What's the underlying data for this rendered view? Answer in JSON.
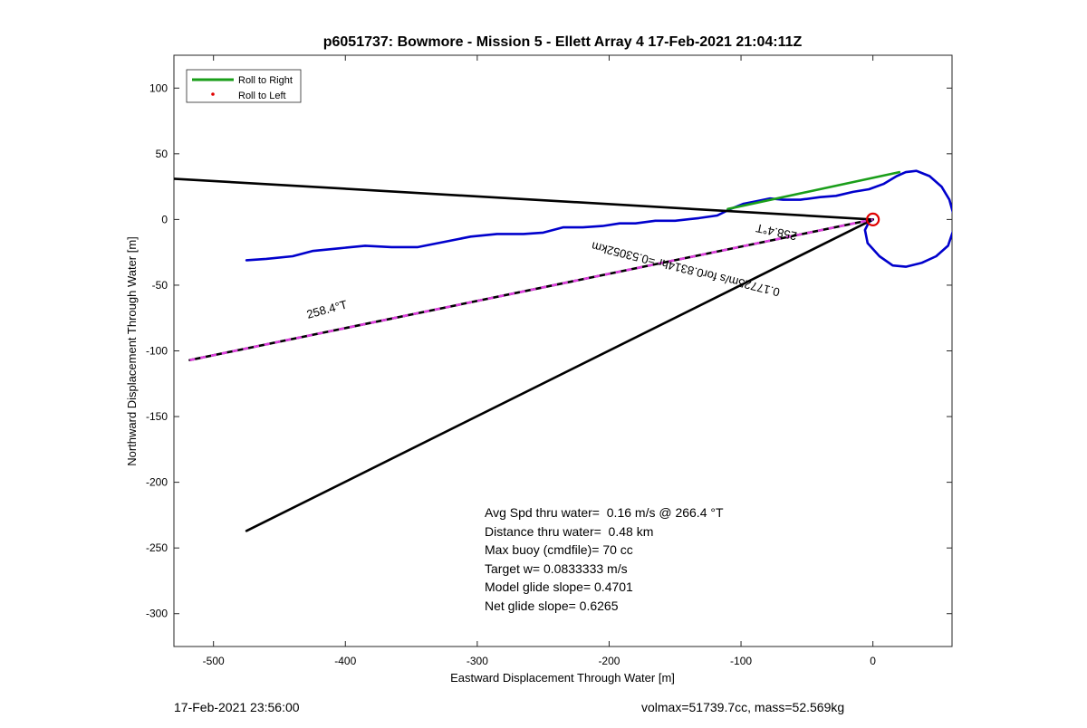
{
  "chart_data": {
    "type": "line",
    "title": "p6051737: Bowmore - Mission 5 - Ellett Array 4 17-Feb-2021 21:04:11Z",
    "xlabel": "Eastward Displacement Through Water [m]",
    "ylabel": "Northward Displacement Through Water [m]",
    "xlim": [
      -530,
      60
    ],
    "ylim": [
      -325,
      125
    ],
    "xticks": [
      -500,
      -400,
      -300,
      -200,
      -100,
      0
    ],
    "yticks": [
      100,
      50,
      0,
      -50,
      -100,
      -150,
      -200,
      -250,
      -300
    ],
    "grid": false,
    "legend": {
      "placement": "top-left",
      "entries": [
        {
          "label": "Roll to Right",
          "color": "#1a9e1a",
          "style": "line"
        },
        {
          "label": "Roll to Left",
          "color": "#e00000",
          "style": "dot"
        }
      ]
    },
    "series": [
      {
        "color": "#0000cc",
        "points": [
          [
            -475,
            -31
          ],
          [
            -460,
            -30
          ],
          [
            -440,
            -28
          ],
          [
            -425,
            -24
          ],
          [
            -405,
            -22
          ],
          [
            -385,
            -20
          ],
          [
            -365,
            -21
          ],
          [
            -345,
            -21
          ],
          [
            -325,
            -17
          ],
          [
            -305,
            -13
          ],
          [
            -285,
            -11
          ],
          [
            -265,
            -11
          ],
          [
            -250,
            -10
          ],
          [
            -235,
            -6
          ],
          [
            -220,
            -6
          ],
          [
            -205,
            -5
          ],
          [
            -192,
            -3
          ],
          [
            -180,
            -3
          ],
          [
            -165,
            -1
          ],
          [
            -150,
            -1
          ],
          [
            -132,
            1
          ],
          [
            -118,
            3
          ],
          [
            -108,
            8
          ],
          [
            -98,
            12
          ],
          [
            -88,
            14
          ],
          [
            -78,
            16
          ],
          [
            -68,
            15
          ],
          [
            -55,
            15
          ],
          [
            -40,
            17
          ],
          [
            -28,
            18
          ],
          [
            -15,
            21
          ],
          [
            -3,
            23
          ],
          [
            8,
            27
          ],
          [
            18,
            33
          ],
          [
            25,
            36
          ],
          [
            33,
            37
          ],
          [
            43,
            33
          ],
          [
            52,
            25
          ],
          [
            58,
            15
          ],
          [
            61,
            4
          ],
          [
            61,
            -8
          ],
          [
            57,
            -20
          ],
          [
            48,
            -28
          ],
          [
            37,
            -33
          ],
          [
            25,
            -36
          ],
          [
            15,
            -35
          ],
          [
            5,
            -28
          ],
          [
            -4,
            -18
          ],
          [
            -6,
            -8
          ],
          [
            -3,
            -2
          ],
          [
            0,
            0
          ]
        ]
      },
      {
        "color": "#1a9e1a",
        "points": [
          [
            -110,
            8
          ],
          [
            20,
            36
          ]
        ]
      },
      {
        "color": "#000000",
        "points": [
          [
            -530,
            31
          ],
          [
            0,
            0
          ]
        ]
      },
      {
        "color": "#000000",
        "points": [
          [
            -475,
            -237
          ],
          [
            0,
            0
          ]
        ]
      },
      {
        "color": "#000000",
        "dash_color": "#e040e0",
        "points": [
          [
            -518,
            -107
          ],
          [
            0,
            0
          ]
        ]
      }
    ],
    "markers": [
      {
        "type": "circle",
        "color": "#e00000",
        "x": 0,
        "y": 0
      }
    ],
    "annotations": {
      "heading_near": "258.4°T",
      "heading_far": "258.4°T",
      "speed": "0.17725m/s for0.8314hr =0.53052km",
      "stats": [
        "Avg Spd thru water=  0.16 m/s @ 266.4 °T",
        "Distance thru water=  0.48 km",
        "Max buoy (cmdfile)= 70 cc",
        "Target w= 0.0833333 m/s",
        "Model glide slope= 0.4701",
        "Net glide slope= 0.6265"
      ]
    }
  },
  "footer": {
    "timestamp": "17-Feb-2021 23:56:00",
    "volmax_mass": "volmax=51739.7cc, mass=52.569kg"
  }
}
